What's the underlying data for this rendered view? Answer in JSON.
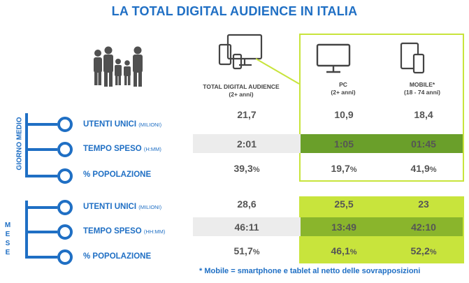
{
  "title": "LA TOTAL DIGITAL AUDIENCE IN ITALIA",
  "columns": [
    {
      "label": "TOTAL DIGITAL AUDIENCE",
      "sub": "(2+ anni)"
    },
    {
      "label": "PC",
      "sub": "(2+ anni)"
    },
    {
      "label": "MOBILE*",
      "sub": "(18 - 74 anni)"
    }
  ],
  "sections": [
    {
      "label": "GIORNO MEDIO",
      "rows": [
        {
          "name": "UTENTI UNICI",
          "unit": "(MILIONI)",
          "values": [
            "21,7",
            "10,9",
            "18,4"
          ]
        },
        {
          "name": "TEMPO SPESO",
          "unit": "(H:MM)",
          "values": [
            "2:01",
            "1:05",
            "01:45"
          ]
        },
        {
          "name": "% POPOLAZIONE",
          "unit": "",
          "values": [
            "39,3",
            "19,7",
            "41,9"
          ],
          "suffix": "%"
        }
      ]
    },
    {
      "label": "M E S E",
      "rows": [
        {
          "name": "UTENTI UNICI",
          "unit": "(MILIONI)",
          "values": [
            "28,6",
            "25,5",
            "23"
          ]
        },
        {
          "name": "TEMPO SPESO",
          "unit": "(HH:MM)",
          "values": [
            "46:11",
            "13:49",
            "42:10"
          ]
        },
        {
          "name": "% POPOLAZIONE",
          "unit": "",
          "values": [
            "51,7",
            "46,1",
            "52,2"
          ],
          "suffix": "%"
        }
      ]
    }
  ],
  "footnote": "* Mobile = smartphone e tablet al netto delle sovrapposizioni",
  "colors": {
    "brand_blue": "#1f6fc4",
    "lime": "#c8e43c",
    "green_mid": "#8ab52c",
    "green_dark": "#6a9f2a",
    "gray_band": "#ececec"
  },
  "icons": [
    "family-icon",
    "multi-device-icon",
    "monitor-icon",
    "mobile-devices-icon"
  ],
  "chart_data": {
    "type": "table",
    "title": "LA TOTAL DIGITAL AUDIENCE IN ITALIA",
    "columns": [
      "TOTAL DIGITAL AUDIENCE (2+ anni)",
      "PC (2+ anni)",
      "MOBILE* (18 - 74 anni)"
    ],
    "rows": [
      {
        "group": "GIORNO MEDIO",
        "metric": "UTENTI UNICI (MILIONI)",
        "values": [
          21.7,
          10.9,
          18.4
        ]
      },
      {
        "group": "GIORNO MEDIO",
        "metric": "TEMPO SPESO (H:MM)",
        "values": [
          "2:01",
          "1:05",
          "01:45"
        ]
      },
      {
        "group": "GIORNO MEDIO",
        "metric": "% POPOLAZIONE",
        "values": [
          39.3,
          19.7,
          41.9
        ]
      },
      {
        "group": "MESE",
        "metric": "UTENTI UNICI (MILIONI)",
        "values": [
          28.6,
          25.5,
          23
        ]
      },
      {
        "group": "MESE",
        "metric": "TEMPO SPESO (HH:MM)",
        "values": [
          "46:11",
          "13:49",
          "42:10"
        ]
      },
      {
        "group": "MESE",
        "metric": "% POPOLAZIONE",
        "values": [
          51.7,
          46.1,
          52.2
        ]
      }
    ]
  }
}
